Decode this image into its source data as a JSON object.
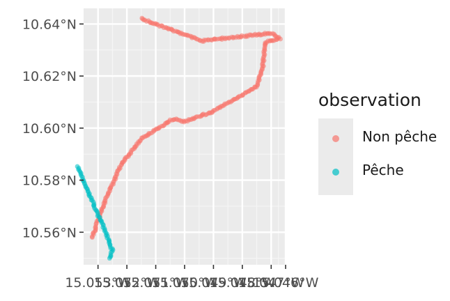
{
  "chart_data": {
    "type": "scatter",
    "title": "",
    "xlabel": "",
    "ylabel": "",
    "x_unit": "longitude (°W)",
    "y_unit": "latitude (°N)",
    "xlim": [
      15.0535,
      15.0465
    ],
    "ylim": [
      10.5475,
      10.646
    ],
    "x_ticks": [
      15.053,
      15.052,
      15.051,
      15.05,
      15.049,
      15.048,
      15.047,
      15.0465
    ],
    "x_tick_labels": [
      "15.053°W",
      "15.052°W",
      "15.051°W",
      "15.050°W",
      "15.049°W",
      "15.048°W",
      "15.047°W",
      "15.046°W"
    ],
    "y_ticks": [
      10.56,
      10.58,
      10.6,
      10.62,
      10.64
    ],
    "y_tick_labels": [
      "10.56°N",
      "10.58°N",
      "10.60°N",
      "10.62°N",
      "10.64°N"
    ],
    "grid": true,
    "legend_position": "right",
    "legend_title": "observation",
    "series": [
      {
        "name": "Non pêche",
        "color": "#f8766d",
        "points": [
          [
            15.0515,
            10.642
          ],
          [
            15.0494,
            10.6335
          ],
          [
            15.0478,
            10.6355
          ],
          [
            15.047,
            10.6365
          ],
          [
            15.0467,
            10.6345
          ],
          [
            15.0472,
            10.633
          ],
          [
            15.0473,
            10.623
          ],
          [
            15.0475,
            10.616
          ],
          [
            15.0483,
            10.611
          ],
          [
            15.0491,
            10.606
          ],
          [
            15.05,
            10.6025
          ],
          [
            15.0504,
            10.6035
          ],
          [
            15.0515,
            10.596
          ],
          [
            15.0522,
            10.586
          ],
          [
            15.0528,
            10.571
          ],
          [
            15.0532,
            10.558
          ]
        ]
      },
      {
        "name": "Pêche",
        "color": "#00bfc4",
        "points": [
          [
            15.0537,
            10.585
          ],
          [
            15.0532,
            10.572
          ],
          [
            15.0527,
            10.559
          ],
          [
            15.0525,
            10.553
          ],
          [
            15.0526,
            10.55
          ]
        ]
      }
    ]
  }
}
